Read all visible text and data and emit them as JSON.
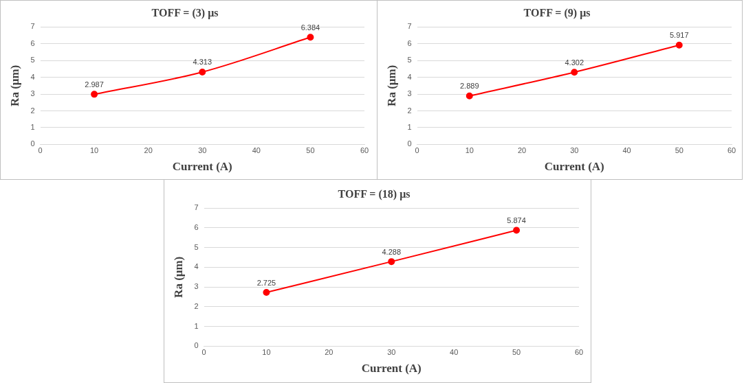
{
  "chart_data": [
    {
      "type": "line",
      "title": "TOFF = (3) μs",
      "xlabel": "Current (A)",
      "ylabel": "Ra (μm)",
      "x": [
        10,
        30,
        50
      ],
      "series": [
        {
          "color": "#ff0000",
          "values": [
            2.987,
            4.313,
            6.384
          ]
        }
      ],
      "xlim": [
        0,
        60
      ],
      "xticks": [
        0,
        10,
        20,
        30,
        40,
        50,
        60
      ],
      "ylim": [
        0,
        7
      ],
      "yticks": [
        0,
        1,
        2,
        3,
        4,
        5,
        6,
        7
      ],
      "grid": "y",
      "marker": "circle",
      "data_labels": true,
      "legend": false
    },
    {
      "type": "line",
      "title": "TOFF = (9) μs",
      "xlabel": "Current (A)",
      "ylabel": "Ra (μm)",
      "x": [
        10,
        30,
        50
      ],
      "series": [
        {
          "color": "#ff0000",
          "values": [
            2.889,
            4.302,
            5.917
          ]
        }
      ],
      "xlim": [
        0,
        60
      ],
      "xticks": [
        0,
        10,
        20,
        30,
        40,
        50,
        60
      ],
      "ylim": [
        0,
        7
      ],
      "yticks": [
        0,
        1,
        2,
        3,
        4,
        5,
        6,
        7
      ],
      "grid": "y",
      "marker": "circle",
      "data_labels": true,
      "legend": false
    },
    {
      "type": "line",
      "title": "TOFF = (18) μs",
      "xlabel": "Current (A)",
      "ylabel": "Ra (μm)",
      "x": [
        10,
        30,
        50
      ],
      "series": [
        {
          "color": "#ff0000",
          "values": [
            2.725,
            4.288,
            5.874
          ]
        }
      ],
      "xlim": [
        0,
        60
      ],
      "xticks": [
        0,
        10,
        20,
        30,
        40,
        50,
        60
      ],
      "ylim": [
        0,
        7
      ],
      "yticks": [
        0,
        1,
        2,
        3,
        4,
        5,
        6,
        7
      ],
      "grid": "y",
      "marker": "circle",
      "data_labels": true,
      "legend": false
    }
  ]
}
